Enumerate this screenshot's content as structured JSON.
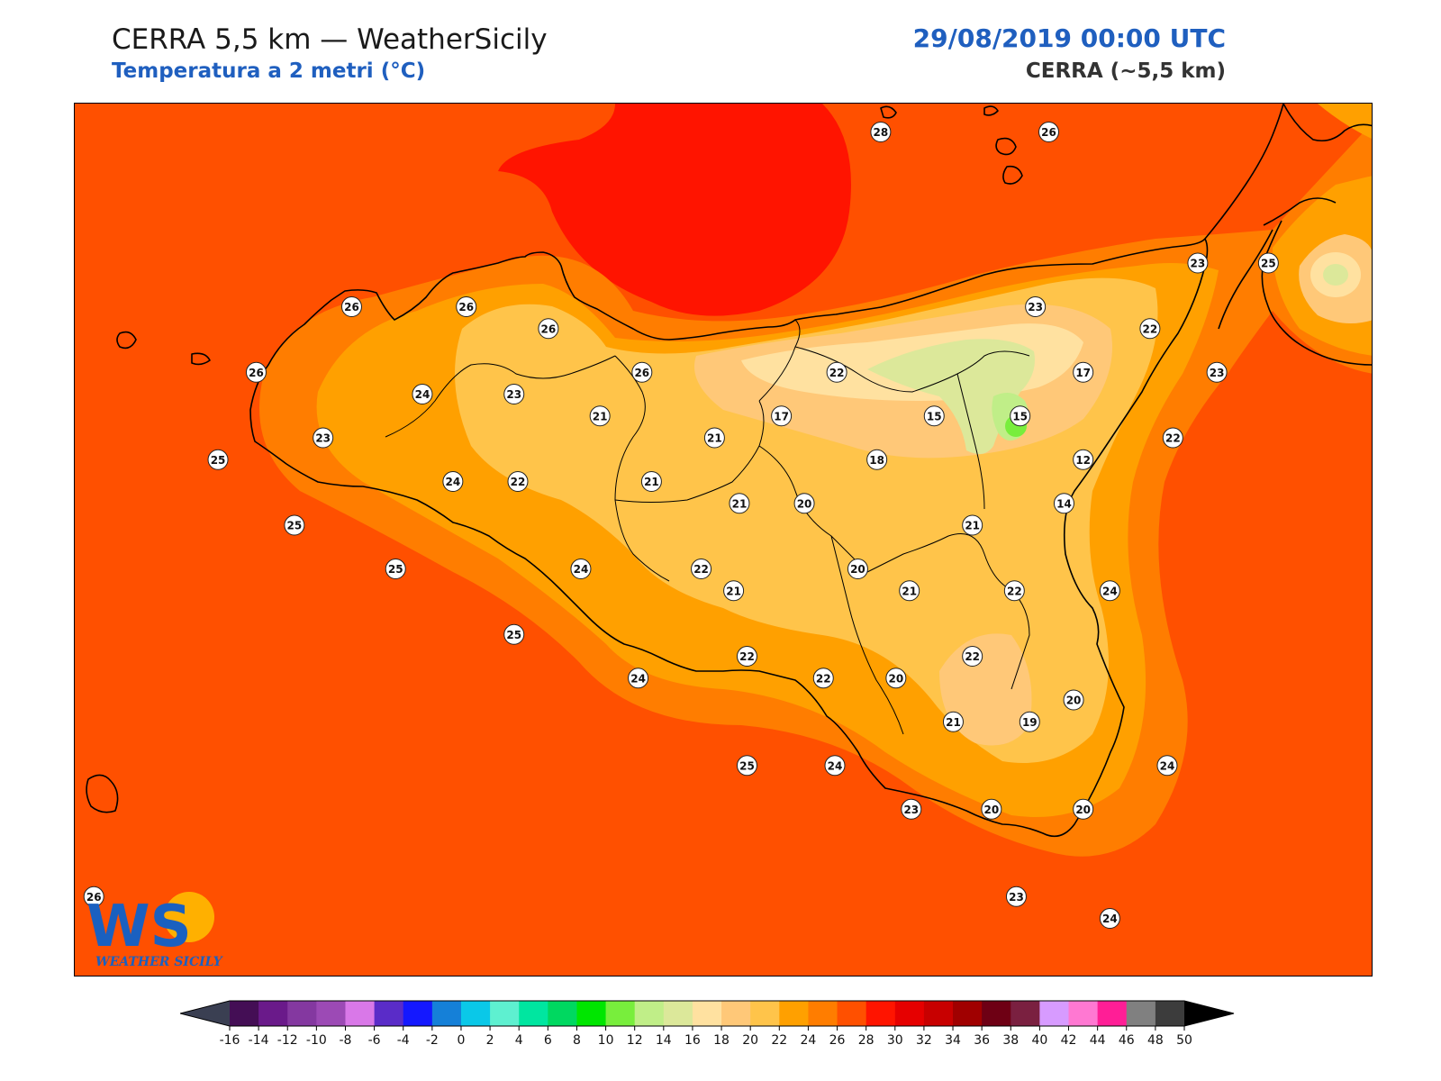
{
  "header": {
    "title": "CERRA 5,5 km — WeatherSicily",
    "subtitle": "Temperatura a 2 metri (°C)",
    "datetime": "29/08/2019 00:00 UTC",
    "model": "CERRA (~5,5 km)"
  },
  "logo": {
    "letters": "WS",
    "name": "WEATHER SICILY",
    "icon": "weather-sicily-logo-icon"
  },
  "colorbar": {
    "ticks": [
      "-16",
      "-14",
      "-12",
      "-10",
      "-8",
      "-6",
      "-4",
      "-2",
      "0",
      "2",
      "4",
      "6",
      "8",
      "10",
      "12",
      "14",
      "16",
      "18",
      "20",
      "22",
      "24",
      "26",
      "28",
      "30",
      "32",
      "34",
      "36",
      "38",
      "40",
      "42",
      "44",
      "46",
      "48",
      "50"
    ],
    "colors": [
      "#440e55",
      "#6a1a8a",
      "#8438a0",
      "#9c4ab5",
      "#d978e8",
      "#5a2cc8",
      "#1418ff",
      "#1580d8",
      "#0ac8e8",
      "#5ef0d0",
      "#00e6a0",
      "#00d860",
      "#00e600",
      "#78ee3c",
      "#c0ee88",
      "#dce89a",
      "#ffe1a0",
      "#ffc878",
      "#ffc44a",
      "#ffa000",
      "#ff7d00",
      "#ff5000",
      "#ff1400",
      "#e60000",
      "#c80000",
      "#a00000",
      "#6e0014",
      "#7a2040",
      "#d79bff",
      "#ff78d2",
      "#ff1e96",
      "#808080",
      "#3c3c3c"
    ],
    "under_color": "#3a3f52",
    "over_color": "#000000"
  },
  "map": {
    "labels": [
      {
        "v": "28",
        "lon": 14.82,
        "lat": 39.37
      },
      {
        "v": "26",
        "lon": 15.7,
        "lat": 39.37
      },
      {
        "v": "26",
        "lon": 12.05,
        "lat": 38.57
      },
      {
        "v": "26",
        "lon": 12.65,
        "lat": 38.57
      },
      {
        "v": "26",
        "lon": 13.08,
        "lat": 38.47
      },
      {
        "v": "26",
        "lon": 11.55,
        "lat": 38.27
      },
      {
        "v": "26",
        "lon": 13.57,
        "lat": 38.27
      },
      {
        "v": "22",
        "lon": 14.59,
        "lat": 38.27
      },
      {
        "v": "23",
        "lon": 15.63,
        "lat": 38.57
      },
      {
        "v": "23",
        "lon": 16.48,
        "lat": 38.77
      },
      {
        "v": "25",
        "lon": 16.85,
        "lat": 38.77
      },
      {
        "v": "22",
        "lon": 16.23,
        "lat": 38.47
      },
      {
        "v": "17",
        "lon": 15.88,
        "lat": 38.27
      },
      {
        "v": "23",
        "lon": 16.58,
        "lat": 38.27
      },
      {
        "v": "24",
        "lon": 12.42,
        "lat": 38.17
      },
      {
        "v": "23",
        "lon": 12.9,
        "lat": 38.17
      },
      {
        "v": "21",
        "lon": 13.35,
        "lat": 38.07
      },
      {
        "v": "17",
        "lon": 14.3,
        "lat": 38.07
      },
      {
        "v": "15",
        "lon": 15.1,
        "lat": 38.07
      },
      {
        "v": "15",
        "lon": 15.55,
        "lat": 38.07
      },
      {
        "v": "23",
        "lon": 11.9,
        "lat": 37.97
      },
      {
        "v": "21",
        "lon": 13.95,
        "lat": 37.97
      },
      {
        "v": "22",
        "lon": 16.35,
        "lat": 37.97
      },
      {
        "v": "25",
        "lon": 11.35,
        "lat": 37.87
      },
      {
        "v": "18",
        "lon": 14.8,
        "lat": 37.87
      },
      {
        "v": "12",
        "lon": 15.88,
        "lat": 37.87
      },
      {
        "v": "24",
        "lon": 12.58,
        "lat": 37.77
      },
      {
        "v": "22",
        "lon": 12.92,
        "lat": 37.77
      },
      {
        "v": "21",
        "lon": 13.62,
        "lat": 37.77
      },
      {
        "v": "21",
        "lon": 14.08,
        "lat": 37.67
      },
      {
        "v": "20",
        "lon": 14.42,
        "lat": 37.67
      },
      {
        "v": "14",
        "lon": 15.78,
        "lat": 37.67
      },
      {
        "v": "25",
        "lon": 11.75,
        "lat": 37.57
      },
      {
        "v": "21",
        "lon": 15.3,
        "lat": 37.57
      },
      {
        "v": "25",
        "lon": 12.28,
        "lat": 37.37
      },
      {
        "v": "24",
        "lon": 13.25,
        "lat": 37.37
      },
      {
        "v": "22",
        "lon": 13.88,
        "lat": 37.37
      },
      {
        "v": "20",
        "lon": 14.7,
        "lat": 37.37
      },
      {
        "v": "21",
        "lon": 14.05,
        "lat": 37.27
      },
      {
        "v": "21",
        "lon": 14.97,
        "lat": 37.27
      },
      {
        "v": "22",
        "lon": 15.52,
        "lat": 37.27
      },
      {
        "v": "24",
        "lon": 16.02,
        "lat": 37.27
      },
      {
        "v": "25",
        "lon": 12.9,
        "lat": 37.07
      },
      {
        "v": "22",
        "lon": 14.12,
        "lat": 36.97
      },
      {
        "v": "22",
        "lon": 15.3,
        "lat": 36.97
      },
      {
        "v": "24",
        "lon": 13.55,
        "lat": 36.87
      },
      {
        "v": "22",
        "lon": 14.52,
        "lat": 36.87
      },
      {
        "v": "20",
        "lon": 14.9,
        "lat": 36.87
      },
      {
        "v": "20",
        "lon": 15.83,
        "lat": 36.77
      },
      {
        "v": "21",
        "lon": 15.2,
        "lat": 36.67
      },
      {
        "v": "19",
        "lon": 15.6,
        "lat": 36.67
      },
      {
        "v": "25",
        "lon": 14.12,
        "lat": 36.47
      },
      {
        "v": "24",
        "lon": 14.58,
        "lat": 36.47
      },
      {
        "v": "24",
        "lon": 16.32,
        "lat": 36.47
      },
      {
        "v": "23",
        "lon": 14.98,
        "lat": 36.27
      },
      {
        "v": "20",
        "lon": 15.4,
        "lat": 36.27
      },
      {
        "v": "20",
        "lon": 15.88,
        "lat": 36.27
      },
      {
        "v": "26",
        "lon": 10.7,
        "lat": 35.87
      },
      {
        "v": "23",
        "lon": 15.53,
        "lat": 35.87
      },
      {
        "v": "24",
        "lon": 16.02,
        "lat": 35.77
      }
    ]
  }
}
